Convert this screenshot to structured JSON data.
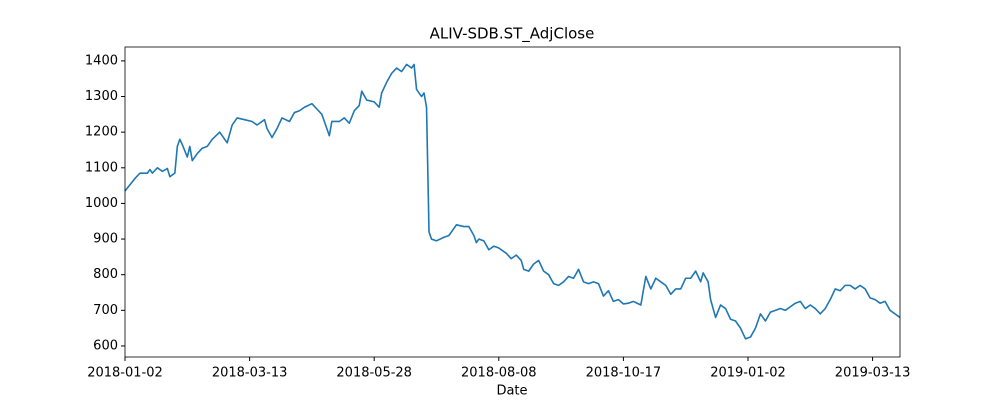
{
  "chart_data": {
    "type": "line",
    "title": "ALIV-SDB.ST_AdjClose",
    "x_label": "Date",
    "x": [
      0,
      4,
      6,
      9,
      10,
      11,
      13,
      15,
      17,
      18,
      20,
      21,
      22,
      23,
      25,
      26,
      27,
      29,
      31,
      33,
      35,
      38,
      41,
      43,
      45,
      48,
      51,
      53,
      56,
      57,
      59,
      61,
      63,
      66,
      68,
      70,
      72,
      75,
      77,
      79,
      81,
      82,
      83,
      86,
      88,
      90,
      92,
      94,
      95,
      97,
      100,
      102,
      103,
      105,
      107,
      109,
      111,
      113,
      115,
      116,
      117,
      119,
      120,
      121,
      122,
      123,
      125,
      128,
      130,
      133,
      136,
      138,
      140,
      141,
      142,
      144,
      146,
      148,
      150,
      153,
      155,
      157,
      159,
      160,
      162,
      164,
      166,
      168,
      170,
      172,
      174,
      176,
      178,
      180,
      182,
      184,
      186,
      188,
      190,
      192,
      194,
      196,
      198,
      200,
      202,
      204,
      207,
      209,
      211,
      213,
      215,
      217,
      219,
      221,
      223,
      225,
      227,
      229,
      231,
      232,
      234,
      235,
      237,
      239,
      241,
      243,
      245,
      247,
      249,
      251,
      253,
      255,
      257,
      259,
      261,
      263,
      265,
      267,
      269,
      271,
      273,
      275,
      277,
      279,
      281,
      283,
      285,
      287,
      289,
      291,
      293,
      295,
      297,
      299,
      301,
      303,
      305,
      307,
      309,
      311
    ],
    "series": [
      {
        "name": "ALIV-SDB.ST_AdjClose",
        "color": "#1f77b4",
        "values": [
          1035,
          1070,
          1085,
          1085,
          1095,
          1085,
          1100,
          1090,
          1098,
          1075,
          1085,
          1160,
          1180,
          1165,
          1130,
          1160,
          1120,
          1140,
          1155,
          1160,
          1180,
          1200,
          1170,
          1220,
          1240,
          1235,
          1230,
          1220,
          1235,
          1210,
          1185,
          1210,
          1240,
          1230,
          1255,
          1260,
          1270,
          1280,
          1265,
          1250,
          1210,
          1190,
          1230,
          1230,
          1240,
          1225,
          1260,
          1275,
          1315,
          1290,
          1285,
          1270,
          1310,
          1340,
          1365,
          1380,
          1370,
          1390,
          1380,
          1390,
          1320,
          1300,
          1310,
          1270,
          920,
          900,
          895,
          905,
          910,
          940,
          935,
          935,
          910,
          890,
          900,
          895,
          870,
          880,
          875,
          860,
          845,
          855,
          840,
          815,
          810,
          830,
          840,
          810,
          800,
          775,
          770,
          780,
          795,
          790,
          815,
          780,
          775,
          780,
          775,
          740,
          755,
          725,
          730,
          718,
          720,
          725,
          715,
          795,
          760,
          790,
          780,
          770,
          745,
          760,
          760,
          790,
          790,
          810,
          780,
          805,
          780,
          730,
          680,
          715,
          705,
          675,
          670,
          650,
          620,
          625,
          650,
          690,
          670,
          695,
          700,
          705,
          700,
          710,
          720,
          725,
          705,
          715,
          705,
          690,
          705,
          730,
          760,
          755,
          770,
          770,
          760,
          770,
          760,
          735,
          730,
          720,
          725,
          700,
          690,
          680
        ]
      }
    ],
    "xlim": [
      0,
      311
    ],
    "xticks": [
      {
        "value": 0,
        "label": "2018-01-02"
      },
      {
        "value": 50,
        "label": "2018-03-13"
      },
      {
        "value": 100,
        "label": "2018-05-28"
      },
      {
        "value": 150,
        "label": "2018-08-08"
      },
      {
        "value": 200,
        "label": "2018-10-17"
      },
      {
        "value": 250,
        "label": "2019-01-02"
      },
      {
        "value": 300,
        "label": "2019-03-13"
      }
    ],
    "ylim": [
      569,
      1439
    ],
    "yticks": [
      600,
      700,
      800,
      900,
      1000,
      1100,
      1200,
      1300,
      1400
    ],
    "grid": false
  }
}
